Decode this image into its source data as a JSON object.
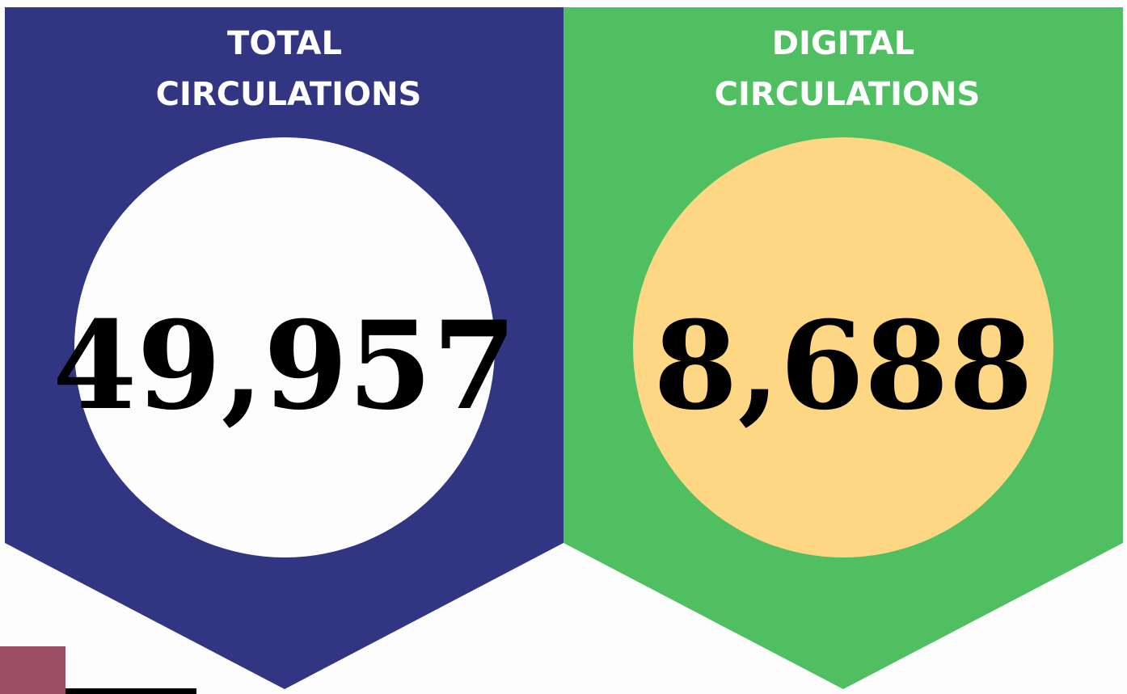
{
  "panels": [
    {
      "title_line1": "TOTAL",
      "title_line2": "CIRCULATIONS",
      "value": "49,957"
    },
    {
      "title_line1": "DIGITAL",
      "title_line2": "CIRCULATIONS",
      "value": "8,688"
    }
  ]
}
